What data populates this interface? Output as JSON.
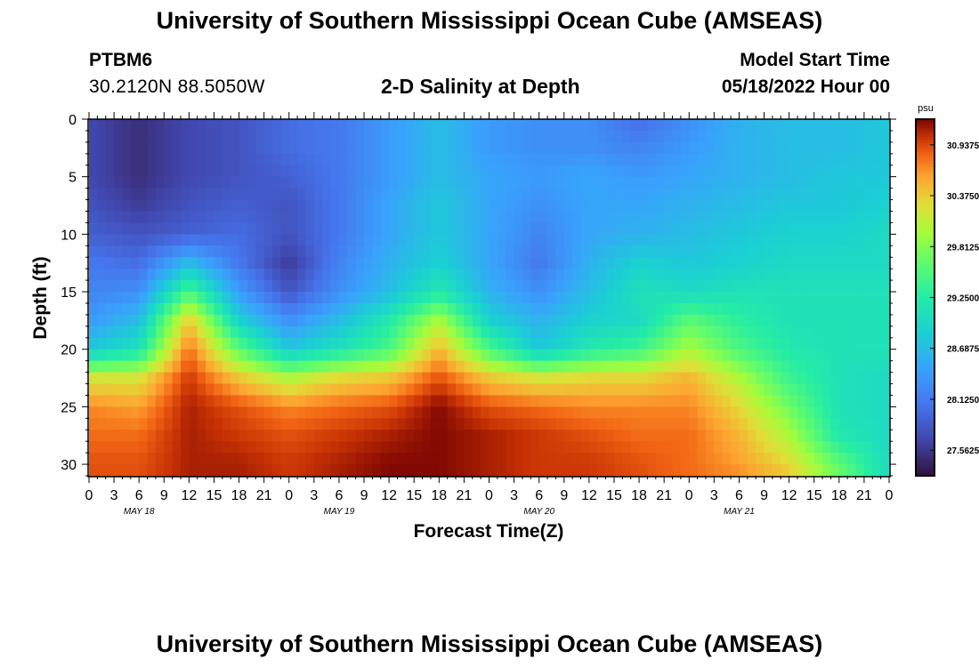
{
  "header": {
    "title": "University of Southern Mississippi Ocean Cube (AMSEAS)",
    "station_id": "PTBM6",
    "coordinates": "30.2120N  88.5050W",
    "chart_title": "2-D Salinity at Depth",
    "model_start_label": "Model Start Time",
    "model_start_value": "05/18/2022 Hour 00"
  },
  "footer": {
    "title": "University of Southern Mississippi Ocean Cube (AMSEAS)"
  },
  "chart_data": {
    "type": "heatmap",
    "title": "2-D Salinity at Depth",
    "xlabel": "Forecast Time(Z)",
    "ylabel": "Depth (ft)",
    "x_range_hours": [
      0,
      96
    ],
    "ylim": [
      0,
      31
    ],
    "y_inverted": true,
    "x_tick_labels": [
      "0",
      "3",
      "6",
      "9",
      "12",
      "15",
      "18",
      "21",
      "0",
      "3",
      "6",
      "9",
      "12",
      "15",
      "18",
      "21",
      "0",
      "3",
      "6",
      "9",
      "12",
      "15",
      "18",
      "21",
      "0",
      "3",
      "6",
      "9",
      "12",
      "15",
      "18",
      "21",
      "0"
    ],
    "day_labels": [
      "MAY 18",
      "MAY 19",
      "MAY 20",
      "MAY 21"
    ],
    "y_ticks": [
      0,
      5,
      10,
      15,
      20,
      25,
      30
    ],
    "colorbar": {
      "unit": "psu",
      "min": 27.28,
      "max": 31.22,
      "tick_values": [
        30.9375,
        30.375,
        29.8125,
        29.25,
        28.6875,
        28.125,
        27.5625
      ],
      "tick_labels": [
        "30.9375",
        "30.3750",
        "29.8125",
        "29.2500",
        "28.6875",
        "28.1250",
        "27.5625"
      ]
    },
    "columns_hours": [
      0,
      6,
      12,
      18,
      24,
      30,
      36,
      42,
      48,
      54,
      60,
      66,
      72,
      78,
      84,
      90,
      96
    ],
    "depths_ft": [
      0,
      2.5,
      5,
      7.5,
      10,
      12.5,
      15,
      17.5,
      20,
      22.5,
      25,
      27.5,
      30,
      31
    ],
    "values_psu": [
      [
        27.7,
        27.5,
        27.7,
        27.8,
        28.0,
        28.1,
        28.4,
        28.7,
        28.4,
        28.3,
        28.3,
        28.0,
        28.3,
        28.6,
        28.7,
        28.7,
        28.8
      ],
      [
        27.7,
        27.5,
        27.7,
        27.8,
        28.0,
        28.1,
        28.4,
        28.7,
        28.4,
        28.3,
        28.3,
        28.2,
        28.4,
        28.6,
        28.7,
        28.7,
        28.8
      ],
      [
        27.7,
        27.5,
        27.7,
        27.8,
        27.9,
        28.1,
        28.4,
        28.7,
        28.5,
        28.4,
        28.5,
        28.4,
        28.5,
        28.6,
        28.7,
        28.8,
        28.8
      ],
      [
        27.8,
        27.6,
        27.8,
        27.9,
        27.8,
        28.1,
        28.5,
        28.8,
        28.5,
        28.3,
        28.5,
        28.5,
        28.6,
        28.7,
        28.8,
        28.8,
        28.9
      ],
      [
        27.9,
        27.8,
        27.9,
        28.0,
        27.8,
        28.1,
        28.5,
        28.8,
        28.5,
        28.2,
        28.5,
        28.6,
        28.7,
        28.8,
        28.9,
        28.9,
        29.0
      ],
      [
        28.1,
        28.0,
        28.7,
        28.1,
        27.6,
        28.2,
        28.6,
        28.9,
        28.5,
        28.1,
        28.6,
        28.9,
        28.8,
        28.9,
        29.0,
        29.0,
        29.0
      ],
      [
        28.2,
        28.3,
        29.5,
        28.4,
        27.8,
        28.3,
        28.7,
        29.2,
        28.6,
        28.3,
        28.7,
        29.1,
        29.0,
        29.1,
        29.1,
        29.1,
        29.1
      ],
      [
        28.4,
        28.7,
        30.4,
        28.9,
        28.3,
        28.7,
        29.2,
        30.0,
        28.9,
        28.6,
        28.9,
        29.0,
        29.6,
        29.3,
        29.1,
        29.1,
        29.1
      ],
      [
        28.8,
        29.1,
        30.8,
        29.6,
        28.8,
        29.1,
        29.5,
        30.5,
        29.5,
        28.8,
        29.2,
        29.4,
        30.0,
        29.5,
        29.2,
        29.1,
        29.1
      ],
      [
        30.2,
        30.2,
        31.0,
        30.4,
        30.0,
        30.3,
        30.4,
        30.9,
        30.4,
        30.2,
        30.3,
        30.3,
        30.5,
        30.0,
        29.4,
        29.1,
        29.0
      ],
      [
        30.7,
        30.6,
        31.1,
        30.9,
        30.7,
        30.8,
        30.9,
        31.2,
        30.9,
        30.8,
        30.7,
        30.7,
        30.7,
        30.3,
        29.7,
        29.1,
        29.0
      ],
      [
        30.8,
        30.8,
        31.1,
        31.0,
        30.9,
        31.0,
        31.1,
        31.2,
        31.1,
        31.0,
        30.9,
        30.8,
        30.8,
        30.5,
        30.0,
        29.2,
        29.0
      ],
      [
        30.9,
        30.9,
        31.1,
        31.1,
        31.0,
        31.1,
        31.2,
        31.2,
        31.1,
        31.0,
        31.0,
        30.9,
        30.8,
        30.6,
        30.3,
        29.6,
        29.0
      ],
      [
        30.9,
        30.9,
        31.1,
        31.1,
        31.0,
        31.1,
        31.2,
        31.2,
        31.1,
        31.0,
        31.0,
        30.9,
        30.8,
        30.7,
        30.4,
        29.7,
        29.0
      ]
    ]
  }
}
